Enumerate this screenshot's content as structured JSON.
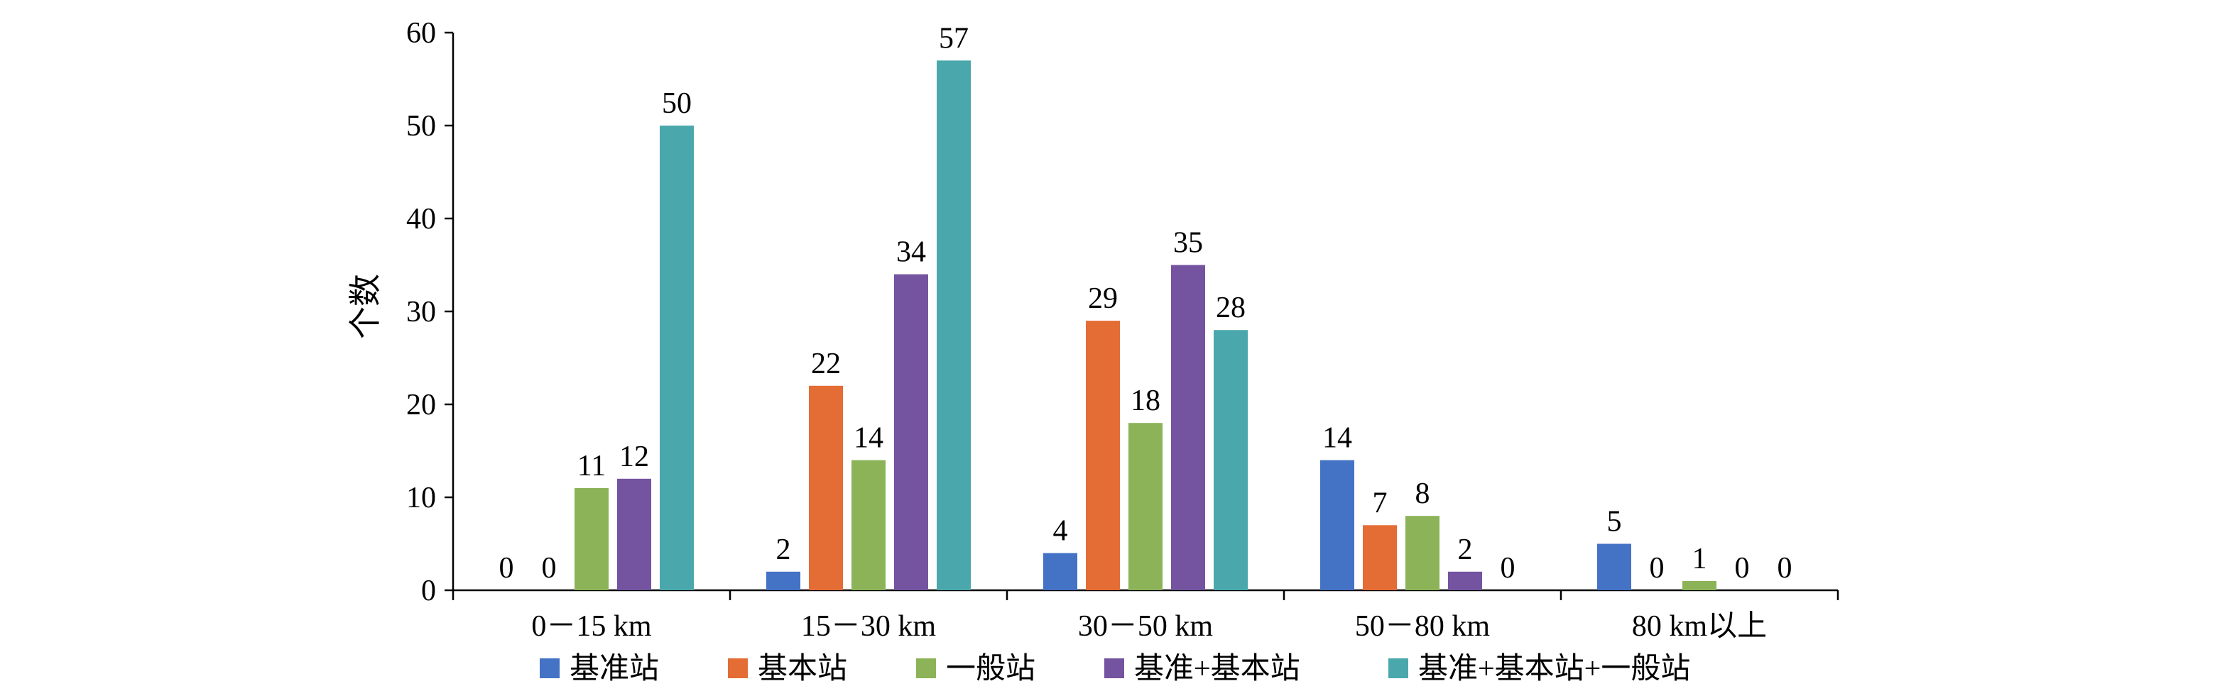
{
  "chart_data": {
    "type": "bar",
    "ylabel": "个数",
    "xlabel": "",
    "title": "",
    "ylim": [
      0,
      60
    ],
    "yticks": [
      0,
      10,
      20,
      30,
      40,
      50,
      60
    ],
    "legend_position": "bottom",
    "grid": false,
    "categories": [
      "0－15 km",
      "15－30 km",
      "30－50 km",
      "50－80 km",
      "80 km以上"
    ],
    "series": [
      {
        "name": "基准站",
        "color": "#4472C4",
        "values": [
          0,
          2,
          4,
          14,
          5
        ]
      },
      {
        "name": "基本站",
        "color": "#E46C35",
        "values": [
          0,
          22,
          29,
          7,
          0
        ]
      },
      {
        "name": "一般站",
        "color": "#8CB357",
        "values": [
          11,
          14,
          18,
          8,
          1
        ]
      },
      {
        "name": "基准+基本站",
        "color": "#7454A0",
        "values": [
          12,
          34,
          35,
          2,
          0
        ]
      },
      {
        "name": "基准+基本站+一般站",
        "color": "#4AA8AC",
        "values": [
          50,
          57,
          28,
          0,
          0
        ]
      }
    ]
  }
}
